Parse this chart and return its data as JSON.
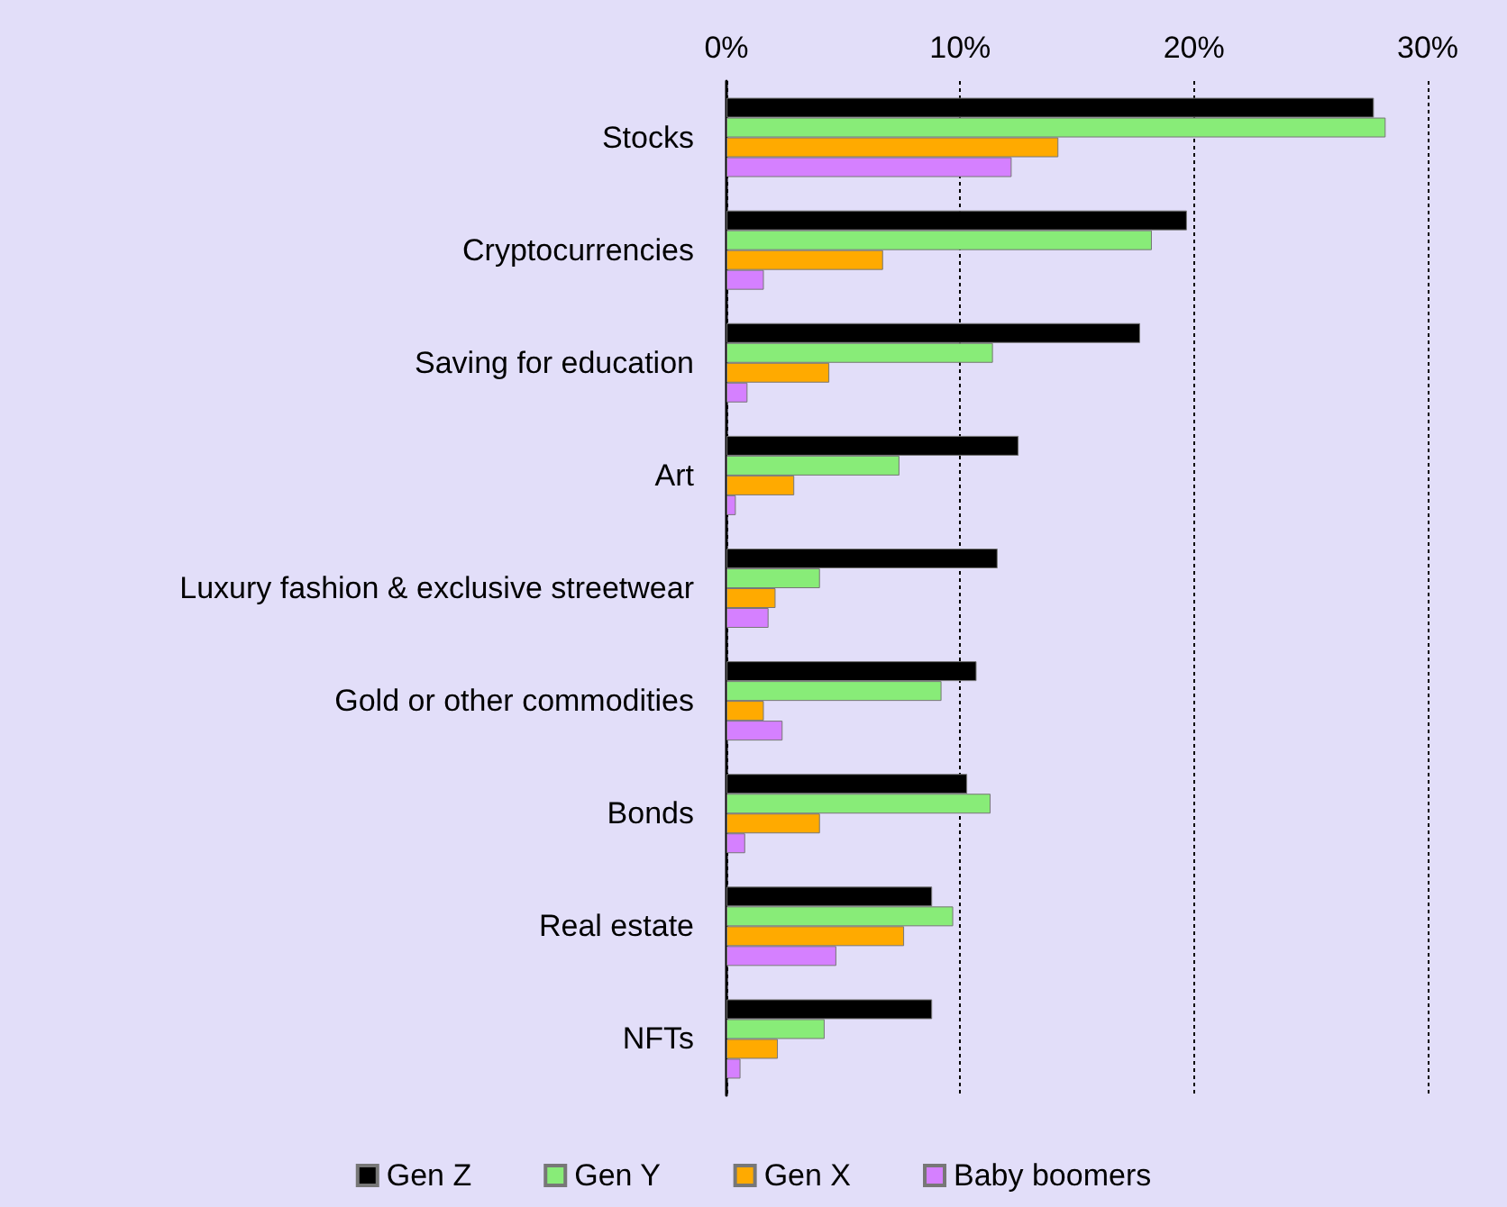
{
  "chart_data": {
    "type": "bar",
    "orientation": "horizontal",
    "categories": [
      "Stocks",
      "Cryptocurrencies",
      "Saving for education",
      "Art",
      "Luxury fashion & exclusive streetwear",
      "Gold or other commodities",
      "Bonds",
      "Real estate",
      "NFTs"
    ],
    "series": [
      {
        "name": "Gen Z",
        "color": "#000000",
        "values": [
          27.7,
          19.7,
          17.7,
          12.5,
          11.6,
          10.7,
          10.3,
          8.8,
          8.8
        ]
      },
      {
        "name": "Gen Y",
        "color": "#88ec78",
        "values": [
          28.2,
          18.2,
          11.4,
          7.4,
          4.0,
          9.2,
          11.3,
          9.7,
          4.2
        ]
      },
      {
        "name": "Gen X",
        "color": "#ffaa00",
        "values": [
          14.2,
          6.7,
          4.4,
          2.9,
          2.1,
          1.6,
          4.0,
          7.6,
          2.2
        ]
      },
      {
        "name": "Baby boomers",
        "color": "#d580ff",
        "values": [
          12.2,
          1.6,
          0.9,
          0.4,
          1.8,
          2.4,
          0.8,
          4.7,
          0.6
        ]
      }
    ],
    "xlim": [
      0,
      30
    ],
    "xticks": [
      {
        "value": 0,
        "label": "0%"
      },
      {
        "value": 10,
        "label": "10%"
      },
      {
        "value": 20,
        "label": "20%"
      },
      {
        "value": 30,
        "label": "30%"
      }
    ],
    "grid": "x",
    "legend": "bottom"
  }
}
